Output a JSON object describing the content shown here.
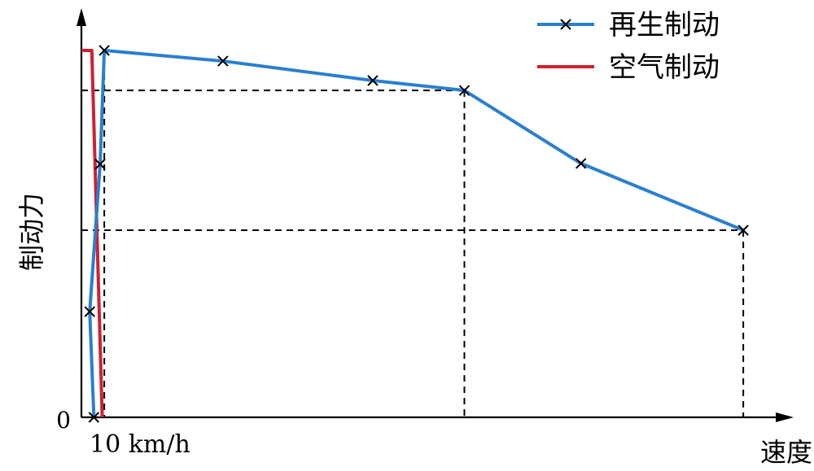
{
  "chart_data": {
    "type": "line",
    "xlabel": "速度",
    "ylabel": "制动力",
    "y_origin_label": "0",
    "x_marker_label": "10 km/h",
    "axis_colors": {
      "axis": "#000000",
      "guide": "#000000"
    },
    "series": [
      {
        "name": "再生制动",
        "color": "#2a7fd0",
        "marker": "x",
        "points": [
          [
            6,
            0
          ],
          [
            4,
            0.288
          ],
          [
            9,
            0.69
          ],
          [
            11,
            1.0
          ],
          [
            68,
            0.971
          ],
          [
            140,
            0.918
          ],
          [
            184,
            0.891
          ],
          [
            240,
            0.692
          ],
          [
            318,
            0.51
          ]
        ],
        "marked": [
          0,
          1,
          2,
          3,
          4,
          5,
          6,
          7,
          8
        ]
      },
      {
        "name": "空气制动",
        "color": "#d02030",
        "marker": "none",
        "points": [
          [
            0,
            1.0
          ],
          [
            5,
            1.0
          ],
          [
            10,
            0
          ]
        ]
      }
    ],
    "guides": {
      "h": [
        0.891,
        0.51
      ],
      "v": [
        11,
        184,
        318
      ]
    },
    "legend_position": "top-right"
  }
}
